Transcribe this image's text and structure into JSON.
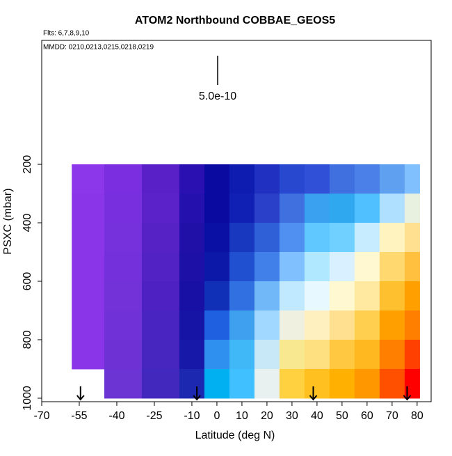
{
  "chart_data": {
    "type": "curtain",
    "title": "ATOM2 Northbound COBBAE_GEOS5",
    "subtitle": "Flts: 6,7,8,9,10",
    "annotation": "MMDD: 0210,0213,0215,0218,0219",
    "scale_label": "5.0e-10",
    "xlabel": "Latitude (deg N)",
    "ylabel": "PSXC (mbar)",
    "xlim": [
      -70,
      85.6
    ],
    "ylim": [
      1012,
      -224
    ],
    "xticks": [
      -70,
      -55,
      -40,
      -25,
      -10,
      0,
      10,
      20,
      30,
      40,
      50,
      60,
      70,
      80
    ],
    "yticks": [
      200,
      400,
      600,
      800,
      1000
    ],
    "lat_edges": [
      -58,
      -45,
      -30,
      -15,
      -5,
      5,
      15,
      25,
      35,
      45,
      55,
      65,
      75,
      81
    ],
    "p_edges": [
      200,
      300,
      400,
      500,
      600,
      700,
      800,
      900,
      1000
    ],
    "colors": [
      [
        "#8c38ea",
        "#7a2ee0",
        "#5a20c8",
        "#2a10b0",
        "#0a0aa0",
        "#0e1cb0",
        "#2030c0",
        "#2848d0",
        "#3050d8",
        "#4070e0",
        "#4a80e8",
        "#60a0f0",
        "#80c0ff"
      ],
      [
        "#8a36e8",
        "#7830de",
        "#5a22c8",
        "#2410ac",
        "#0a0aa0",
        "#1020b4",
        "#2a40c8",
        "#4070e0",
        "#3aa0f0",
        "#30a8f0",
        "#50c0ff",
        "#b0e0ff",
        "#e8f0e0"
      ],
      [
        "#8a36e8",
        "#7630dc",
        "#5622c6",
        "#2010a8",
        "#0a10a4",
        "#1838c0",
        "#3060d8",
        "#5090f0",
        "#60c8ff",
        "#70d0ff",
        "#c8ecff",
        "#fff4c0",
        "#ffe090"
      ],
      [
        "#8a36e8",
        "#7430da",
        "#5222c4",
        "#1c10a6",
        "#0c18a8",
        "#2050d0",
        "#4080e8",
        "#80c0ff",
        "#b0e8ff",
        "#d8f0ff",
        "#fff8d0",
        "#ffd870",
        "#ffc040"
      ],
      [
        "#8a36e8",
        "#7232d8",
        "#4e22c2",
        "#1810a4",
        "#1030b8",
        "#3070e0",
        "#70b8f8",
        "#c0e8ff",
        "#e8f8ff",
        "#fff8d0",
        "#ffe8a0",
        "#ffc030",
        "#ffa000"
      ],
      [
        "#8a36e8",
        "#7032d6",
        "#4a24c0",
        "#1614a4",
        "#1e60e0",
        "#40a0f0",
        "#a0d8ff",
        "#f0f0e0",
        "#fff0c0",
        "#ffe090",
        "#ffd050",
        "#ffa000",
        "#ff8000"
      ],
      [
        "#8a36e8",
        "#6e32d4",
        "#4626be",
        "#1818a8",
        "#3090f0",
        "#40b8f8",
        "#c8e8f8",
        "#f8e890",
        "#ffe080",
        "#ffc840",
        "#ffb820",
        "#ff8000",
        "#ff4000"
      ],
      [
        null,
        "#6c34d2",
        "#4228bc",
        "#1c28b0",
        "#00b0f0",
        "#40c0ff",
        "#e8f0f0",
        "#ffd040",
        "#ffc020",
        "#ffb000",
        "#ff9800",
        "#ff5000",
        "#ff0000"
      ]
    ],
    "arrows": [
      -54.5,
      -8,
      38.5,
      76
    ]
  }
}
